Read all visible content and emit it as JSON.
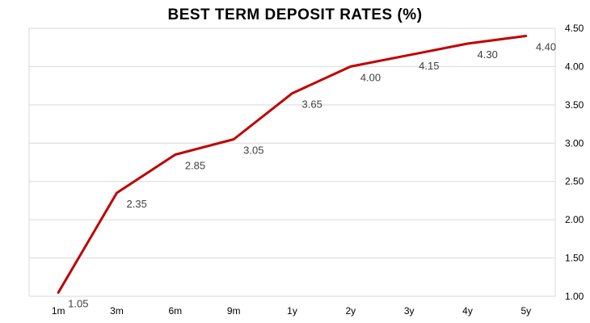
{
  "chart_data": {
    "type": "line",
    "title": "BEST TERM DEPOSIT RATES (%)",
    "categories": [
      "1m",
      "3m",
      "6m",
      "9m",
      "1y",
      "2y",
      "3y",
      "4y",
      "5y"
    ],
    "series": [
      {
        "values": [
          1.05,
          2.35,
          2.85,
          3.05,
          3.65,
          4.0,
          4.15,
          4.3,
          4.4
        ],
        "labels": [
          "1.05",
          "2.35",
          "2.85",
          "3.05",
          "3.65",
          "4.00",
          "4.15",
          "4.30",
          "4.40"
        ]
      }
    ],
    "ylim": [
      1.0,
      4.5
    ],
    "yticks": [
      "1.00",
      "1.50",
      "2.00",
      "2.50",
      "3.00",
      "3.50",
      "4.00",
      "4.50"
    ],
    "y_axis_side": "right",
    "grid": true,
    "colors": {
      "line": "#c00000",
      "grid": "#d9d9d9",
      "text": "#404040"
    }
  }
}
